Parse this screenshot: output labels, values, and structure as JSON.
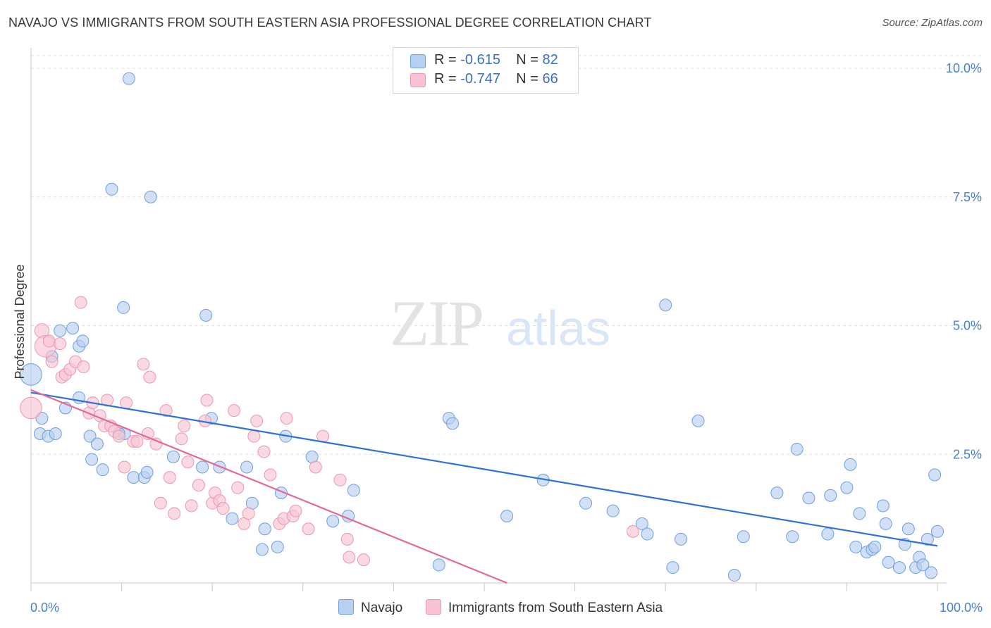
{
  "title": "NAVAJO VS IMMIGRANTS FROM SOUTH EASTERN ASIA PROFESSIONAL DEGREE CORRELATION CHART",
  "source": "Source: ZipAtlas.com",
  "watermark": {
    "zip": "ZIP",
    "atlas": "atlas"
  },
  "legend": {
    "rows": [
      {
        "r_label": "R =",
        "r_value": "-0.615",
        "n_label": "N =",
        "n_value": "82"
      },
      {
        "r_label": "R =",
        "r_value": "-0.747",
        "n_label": "N =",
        "n_value": "66"
      }
    ]
  },
  "bottom_legend": {
    "navajo": "Navajo",
    "sea": "Immigrants from South Eastern Asia"
  },
  "colors": {
    "navajo_fill": "#b8d0f0",
    "navajo_stroke": "#6f9fe0",
    "navajo_line": "#2e72d2",
    "sea_fill": "#f8c4d4",
    "sea_stroke": "#ec97b2",
    "sea_line": "#e4679a",
    "grid": "#dedede",
    "tick_label": "#4a7fc9"
  },
  "chart_data": {
    "type": "scatter",
    "title": "NAVAJO VS IMMIGRANTS FROM SOUTH EASTERN ASIA PROFESSIONAL DEGREE CORRELATION CHART",
    "xlabel": "",
    "ylabel": "Professional Degree",
    "xlim": [
      0,
      100
    ],
    "ylim": [
      0,
      10.25
    ],
    "x_tick_labels": [
      "0.0%",
      "100.0%"
    ],
    "y_ticks": [
      2.5,
      5.0,
      7.5,
      10.0
    ],
    "y_tick_labels": [
      "2.5%",
      "5.0%",
      "7.5%",
      "10.0%"
    ],
    "grid": "horizontal dashed",
    "legend_position": "top-center",
    "series": [
      {
        "name": "Navajo",
        "r": -0.615,
        "n": 82,
        "trend": {
          "x": [
            0,
            100
          ],
          "y": [
            3.7,
            0.72
          ]
        },
        "points": [
          [
            0,
            4.05,
            1.8
          ],
          [
            1.2,
            3.2,
            1
          ],
          [
            1.0,
            2.9,
            1
          ],
          [
            1.9,
            2.85,
            1
          ],
          [
            2.7,
            2.9,
            1
          ],
          [
            2.3,
            4.4,
            1
          ],
          [
            3.2,
            4.9,
            1
          ],
          [
            4.6,
            4.95,
            1
          ],
          [
            3.8,
            3.4,
            1
          ],
          [
            5.3,
            3.6,
            1
          ],
          [
            5.3,
            4.6,
            1
          ],
          [
            5.7,
            4.7,
            1
          ],
          [
            6.5,
            2.85,
            1
          ],
          [
            7.3,
            2.7,
            1
          ],
          [
            6.7,
            2.4,
            1
          ],
          [
            7.9,
            2.2,
            1
          ],
          [
            8.9,
            7.65,
            1
          ],
          [
            10.3,
            2.9,
            1
          ],
          [
            9.7,
            2.9,
            1
          ],
          [
            10.2,
            5.35,
            1
          ],
          [
            10.8,
            9.8,
            1
          ],
          [
            11.3,
            2.05,
            1
          ],
          [
            12.5,
            2.05,
            1
          ],
          [
            12.8,
            2.15,
            1
          ],
          [
            13.2,
            7.5,
            1
          ],
          [
            15.7,
            2.45,
            1
          ],
          [
            19.3,
            5.2,
            1
          ],
          [
            19.9,
            3.2,
            1
          ],
          [
            18.9,
            2.25,
            1
          ],
          [
            20.8,
            2.25,
            1
          ],
          [
            22.2,
            1.25,
            1
          ],
          [
            23.8,
            2.25,
            1
          ],
          [
            24.4,
            1.55,
            1
          ],
          [
            25.8,
            1.05,
            1
          ],
          [
            27.6,
            1.75,
            1
          ],
          [
            27.2,
            0.7,
            1
          ],
          [
            25.5,
            0.65,
            1
          ],
          [
            28.1,
            2.85,
            1
          ],
          [
            31.0,
            2.45,
            1
          ],
          [
            33.3,
            1.2,
            1
          ],
          [
            35.0,
            1.3,
            1
          ],
          [
            35.6,
            1.8,
            1
          ],
          [
            45.0,
            0.35,
            1
          ],
          [
            46.1,
            3.2,
            1
          ],
          [
            46.5,
            3.1,
            1
          ],
          [
            52.5,
            1.3,
            1
          ],
          [
            56.5,
            2.0,
            1
          ],
          [
            61.2,
            1.55,
            1
          ],
          [
            64.2,
            1.4,
            1
          ],
          [
            67.4,
            1.15,
            1
          ],
          [
            68.0,
            0.95,
            1
          ],
          [
            70.0,
            5.4,
            1
          ],
          [
            70.8,
            0.3,
            1
          ],
          [
            71.7,
            0.85,
            1
          ],
          [
            73.6,
            3.15,
            1
          ],
          [
            77.6,
            0.15,
            1
          ],
          [
            78.6,
            0.9,
            1
          ],
          [
            82.3,
            1.75,
            1
          ],
          [
            84.0,
            0.9,
            1
          ],
          [
            84.5,
            2.6,
            1
          ],
          [
            85.8,
            1.65,
            1
          ],
          [
            87.9,
            0.95,
            1
          ],
          [
            88.2,
            1.7,
            1
          ],
          [
            90.0,
            1.85,
            1
          ],
          [
            90.4,
            2.3,
            1
          ],
          [
            91.0,
            0.7,
            1
          ],
          [
            91.4,
            1.35,
            1
          ],
          [
            92.2,
            0.6,
            1
          ],
          [
            92.8,
            0.65,
            1
          ],
          [
            93.1,
            0.7,
            1
          ],
          [
            94.0,
            1.5,
            1
          ],
          [
            94.3,
            1.15,
            1
          ],
          [
            94.6,
            0.4,
            1
          ],
          [
            95.8,
            0.3,
            1
          ],
          [
            96.4,
            0.75,
            1
          ],
          [
            96.8,
            1.05,
            1
          ],
          [
            97.6,
            0.3,
            1
          ],
          [
            98.0,
            0.5,
            1
          ],
          [
            98.4,
            0.35,
            1
          ],
          [
            98.9,
            0.85,
            1
          ],
          [
            99.3,
            0.2,
            1
          ],
          [
            99.7,
            2.1,
            1
          ],
          [
            100.0,
            1.0,
            1
          ]
        ]
      },
      {
        "name": "Immigrants from South Eastern Asia",
        "r": -0.747,
        "n": 66,
        "trend": {
          "x": [
            0,
            52.5
          ],
          "y": [
            3.75,
            0.0
          ]
        },
        "points": [
          [
            0,
            3.4,
            1.8
          ],
          [
            1.2,
            4.9,
            1.2
          ],
          [
            1.6,
            4.6,
            1.8
          ],
          [
            2.0,
            4.7,
            1
          ],
          [
            2.3,
            4.3,
            1
          ],
          [
            3.2,
            4.65,
            1
          ],
          [
            3.4,
            4.0,
            1
          ],
          [
            3.8,
            4.05,
            1
          ],
          [
            4.3,
            4.15,
            1
          ],
          [
            4.9,
            4.3,
            1
          ],
          [
            5.8,
            4.2,
            1
          ],
          [
            5.5,
            5.45,
            1
          ],
          [
            6.4,
            3.3,
            1
          ],
          [
            6.8,
            3.5,
            1
          ],
          [
            7.6,
            3.25,
            1
          ],
          [
            8.1,
            3.05,
            1
          ],
          [
            8.4,
            3.55,
            1
          ],
          [
            8.8,
            3.05,
            1
          ],
          [
            9.2,
            2.95,
            1
          ],
          [
            9.7,
            2.85,
            1
          ],
          [
            10.3,
            2.25,
            1
          ],
          [
            10.5,
            3.5,
            1
          ],
          [
            11.3,
            2.75,
            1
          ],
          [
            11.7,
            2.75,
            1
          ],
          [
            12.4,
            4.25,
            1
          ],
          [
            12.9,
            2.9,
            1
          ],
          [
            13.1,
            4.0,
            1
          ],
          [
            13.8,
            2.7,
            1
          ],
          [
            14.3,
            1.55,
            1
          ],
          [
            14.9,
            3.35,
            1
          ],
          [
            15.3,
            2.05,
            1
          ],
          [
            15.8,
            1.35,
            1
          ],
          [
            16.6,
            2.8,
            1
          ],
          [
            16.9,
            3.05,
            1
          ],
          [
            17.3,
            2.35,
            1
          ],
          [
            17.7,
            1.5,
            1
          ],
          [
            18.5,
            1.9,
            1
          ],
          [
            19.2,
            3.15,
            1
          ],
          [
            19.4,
            3.55,
            1
          ],
          [
            20.0,
            1.55,
            1
          ],
          [
            20.3,
            1.75,
            1
          ],
          [
            20.8,
            1.6,
            1
          ],
          [
            21.2,
            1.45,
            1
          ],
          [
            22.4,
            3.35,
            1
          ],
          [
            22.8,
            1.85,
            1
          ],
          [
            23.5,
            1.15,
            1
          ],
          [
            24.0,
            1.35,
            1
          ],
          [
            24.6,
            2.85,
            1
          ],
          [
            24.9,
            3.15,
            1
          ],
          [
            25.7,
            2.55,
            1
          ],
          [
            26.4,
            2.1,
            1
          ],
          [
            27.4,
            1.15,
            1
          ],
          [
            27.9,
            1.25,
            1
          ],
          [
            28.2,
            3.2,
            1
          ],
          [
            28.9,
            1.3,
            1
          ],
          [
            29.2,
            1.4,
            1
          ],
          [
            30.6,
            1.05,
            1
          ],
          [
            31.4,
            2.25,
            1
          ],
          [
            32.2,
            2.85,
            1
          ],
          [
            34.1,
            2.0,
            1
          ],
          [
            34.9,
            0.85,
            1
          ],
          [
            35.1,
            0.5,
            1
          ],
          [
            36.7,
            0.45,
            1
          ],
          [
            66.4,
            1.0,
            1
          ]
        ]
      }
    ]
  }
}
